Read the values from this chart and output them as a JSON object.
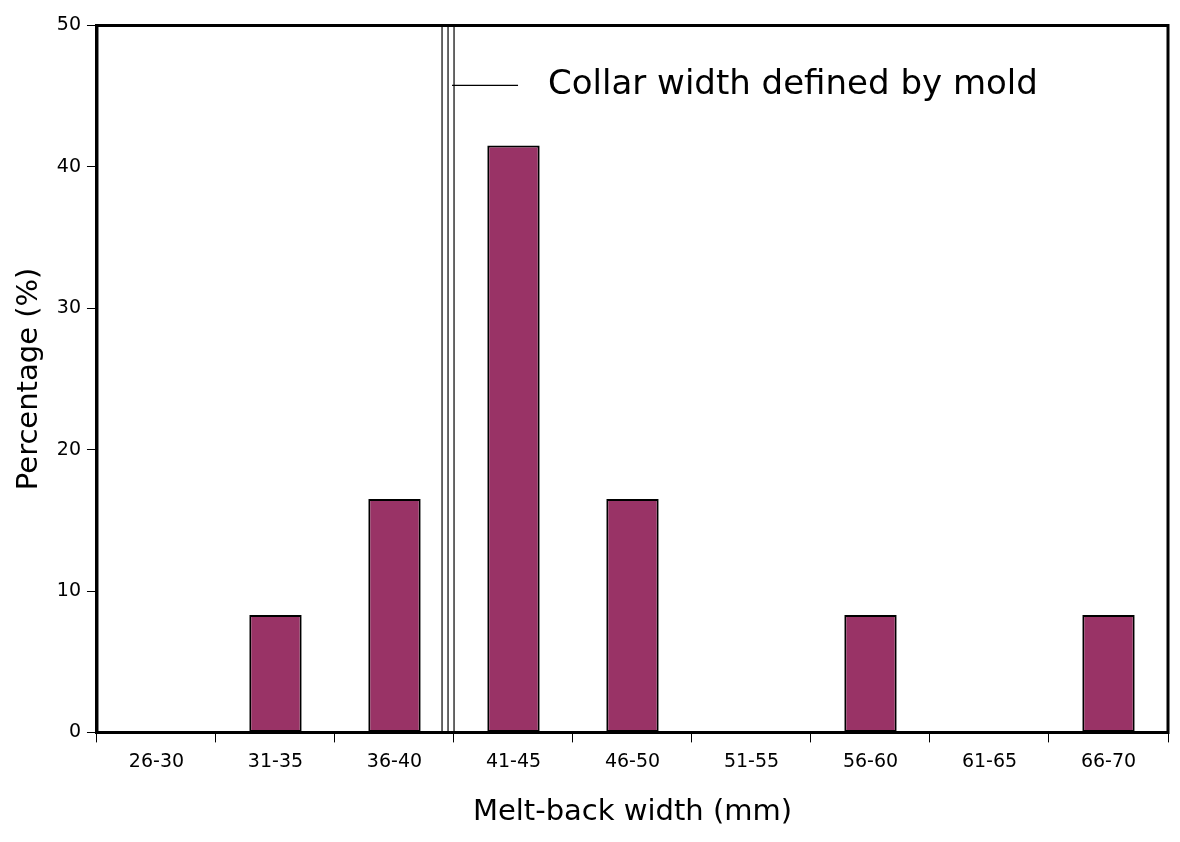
{
  "chart_data": {
    "type": "bar",
    "xlabel": "Melt-back width (mm)",
    "ylabel": "Percentage (%)",
    "categories": [
      "26-30",
      "31-35",
      "36-40",
      "41-45",
      "46-50",
      "51-55",
      "56-60",
      "61-65",
      "66-70"
    ],
    "values": [
      0,
      8.3,
      16.5,
      41.5,
      16.5,
      0,
      8.3,
      0,
      8.3
    ],
    "color": "#993366",
    "ylim": [
      0,
      50
    ],
    "yticks": [
      0,
      10,
      20,
      30,
      40,
      50
    ],
    "grid": false,
    "legend": false,
    "annotations": [
      "Collar width defined by mold"
    ]
  }
}
